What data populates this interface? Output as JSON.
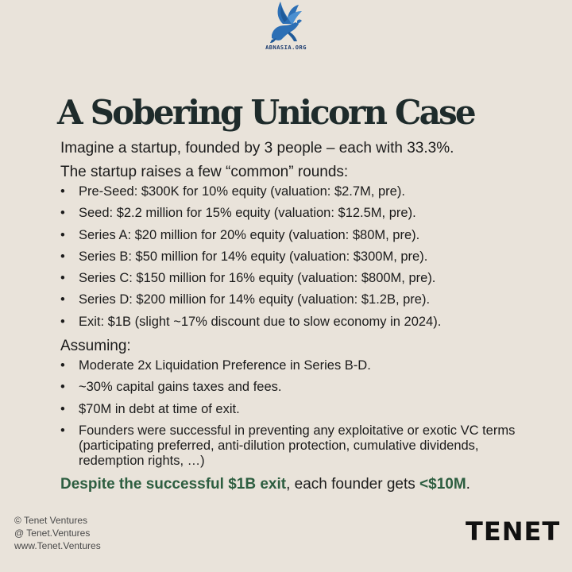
{
  "logo": {
    "text": "ABNASIA.ORG",
    "icon": "winged-horse-icon",
    "color": "#2c6fb5"
  },
  "title": "A Sobering Unicorn Case",
  "intro": "Imagine a startup, founded by 3 people – each with 33.3%.",
  "rounds_heading": "The startup raises a few “common” rounds:",
  "rounds": [
    "Pre-Seed: $300K for 10% equity (valuation: $2.7M, pre).",
    "Seed: $2.2 million for 15% equity (valuation: $12.5M, pre).",
    "Series A: $20 million for 20% equity (valuation: $80M, pre).",
    "Series B: $50 million for 14% equity (valuation: $300M, pre).",
    "Series C: $150 million for 16% equity (valuation: $800M, pre).",
    "Series D: $200 million for 14% equity (valuation: $1.2B, pre).",
    "Exit: $1B (slight ~17% discount due to slow economy in 2024)."
  ],
  "assuming_heading": "Assuming:",
  "assumptions": [
    "Moderate 2x Liquidation Preference in Series B-D.",
    "~30% capital gains taxes and fees.",
    "$70M in debt at time of exit.",
    "Founders were successful in preventing any exploitative or exotic VC terms (participating preferred, anti-dilution protection, cumulative dividends, redemption rights, …)"
  ],
  "conclusion": {
    "highlight": "Despite the successful $1B exit",
    "middle": ", each founder gets ",
    "amount": "<$10M",
    "end": "."
  },
  "footer": {
    "copyright": "© Tenet Ventures",
    "handle": "@ Tenet.Ventures",
    "website": "www.Tenet.Ventures"
  },
  "brand": "TENET",
  "colors": {
    "background": "#e9e3da",
    "accent_green": "#2d5e40",
    "title": "#1e2b2b"
  }
}
